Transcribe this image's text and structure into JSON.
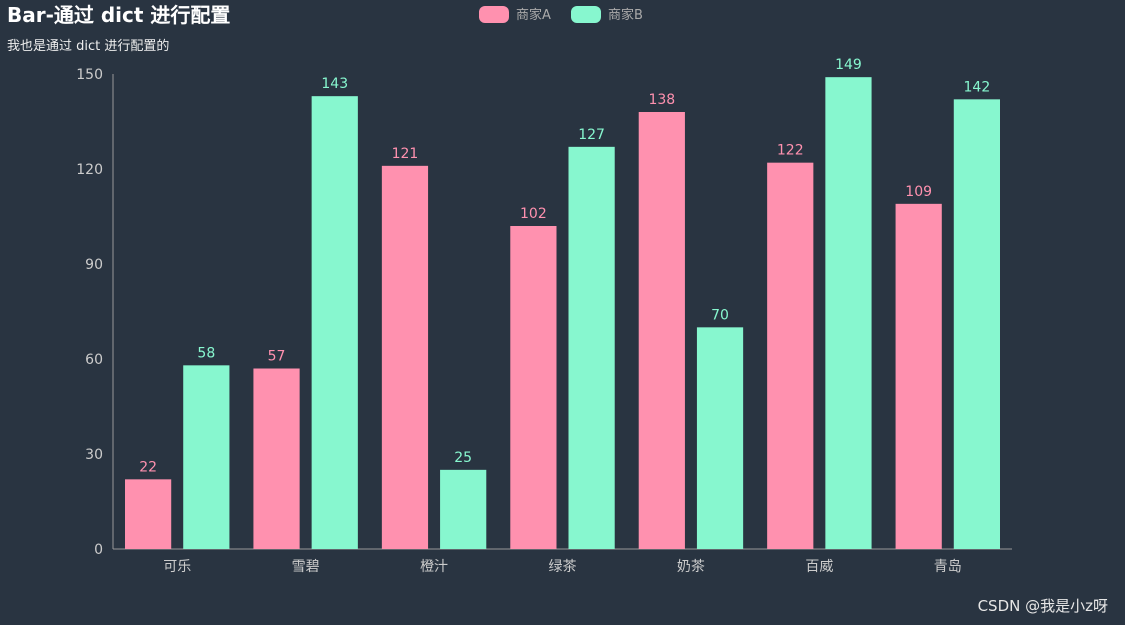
{
  "chart_data": {
    "type": "bar",
    "title": "Bar-通过 dict 进行配置",
    "subtitle": "我也是通过 dict 进行配置的",
    "categories": [
      "可乐",
      "雪碧",
      "橙汁",
      "绿茶",
      "奶茶",
      "百威",
      "青岛"
    ],
    "series": [
      {
        "name": "商家A",
        "color": "#ff91af",
        "values": [
          22,
          57,
          121,
          102,
          138,
          122,
          109
        ]
      },
      {
        "name": "商家B",
        "color": "#87f7cf",
        "values": [
          58,
          143,
          25,
          127,
          70,
          149,
          142
        ]
      }
    ],
    "ylim": [
      0,
      150
    ],
    "yticks": [
      0,
      30,
      60,
      90,
      120,
      150
    ],
    "legend_position": "top-center",
    "data_labels": true,
    "grid": false
  },
  "watermark": "CSDN @我是小z呀",
  "colors": {
    "background": "#293441",
    "axis": "#999999",
    "axis_label": "#cccccc"
  }
}
